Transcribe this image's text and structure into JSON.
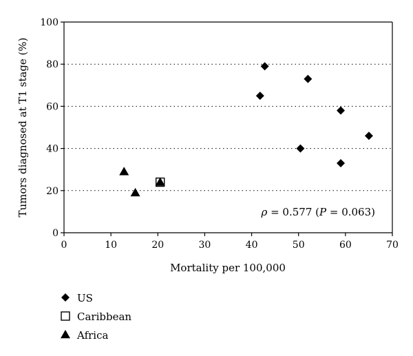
{
  "chart_data": {
    "type": "scatter",
    "title": "",
    "xlabel": "Mortality per 100,000",
    "ylabel": "Tumors diagnosed at T1 stage (%)",
    "xlim": [
      0,
      70
    ],
    "ylim": [
      0,
      100
    ],
    "xticks": [
      "0",
      "10",
      "20",
      "30",
      "40",
      "50",
      "60",
      "70"
    ],
    "yticks": [
      "0",
      "20",
      "40",
      "60",
      "80",
      "100"
    ],
    "grid": "horizontal dotted",
    "legend_position": "bottom-left, below plot",
    "annotation": {
      "prefix": "ρ = 0.577 (",
      "p_symbol": "P",
      "suffix": " = 0.063)"
    },
    "series": [
      {
        "name": "US",
        "marker": "diamond",
        "points": [
          {
            "x": 42.8,
            "y": 79
          },
          {
            "x": 52.0,
            "y": 73
          },
          {
            "x": 41.8,
            "y": 65
          },
          {
            "x": 59.0,
            "y": 58
          },
          {
            "x": 65.0,
            "y": 46
          },
          {
            "x": 50.4,
            "y": 40
          },
          {
            "x": 59.0,
            "y": 33
          }
        ]
      },
      {
        "name": "Caribbean",
        "marker": "open-square",
        "points": [
          {
            "x": 20.5,
            "y": 24
          }
        ]
      },
      {
        "name": "Africa",
        "marker": "triangle",
        "points": [
          {
            "x": 12.8,
            "y": 29
          },
          {
            "x": 15.2,
            "y": 19
          },
          {
            "x": 20.5,
            "y": 24
          }
        ]
      }
    ]
  }
}
